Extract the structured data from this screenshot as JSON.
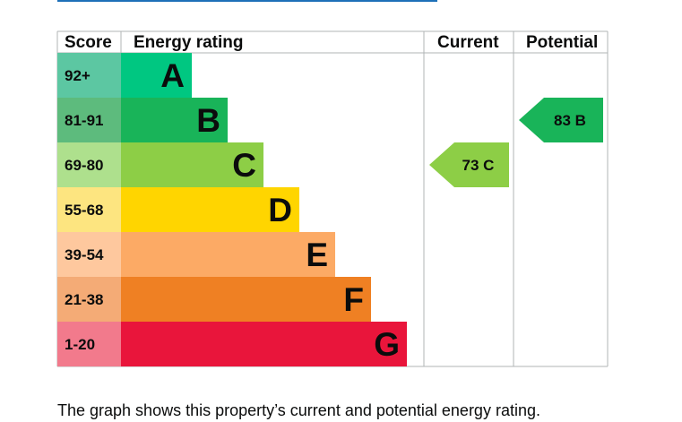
{
  "chart_data": {
    "type": "bar",
    "headers": {
      "score": "Score",
      "energy_rating": "Energy rating",
      "current": "Current",
      "potential": "Potential"
    },
    "bands": [
      {
        "score": "92+",
        "letter": "A",
        "score_color": "#5cc7a2",
        "bar_color": "#00c781",
        "letter_color": "#0b0c0c"
      },
      {
        "score": "81-91",
        "letter": "B",
        "score_color": "#5dbb7d",
        "bar_color": "#19b459",
        "letter_color": "#0b0c0c"
      },
      {
        "score": "69-80",
        "letter": "C",
        "score_color": "#aee08d",
        "bar_color": "#8dce46",
        "letter_color": "#0b0c0c"
      },
      {
        "score": "55-68",
        "letter": "D",
        "score_color": "#fde580",
        "bar_color": "#ffd500",
        "letter_color": "#0b0c0c"
      },
      {
        "score": "39-54",
        "letter": "E",
        "score_color": "#fec89e",
        "bar_color": "#fcaa65",
        "letter_color": "#0b0c0c"
      },
      {
        "score": "21-38",
        "letter": "F",
        "score_color": "#f4ab76",
        "bar_color": "#ef8023",
        "letter_color": "#0b0c0c"
      },
      {
        "score": "1-20",
        "letter": "G",
        "score_color": "#f27a8c",
        "bar_color": "#e9153b",
        "letter_color": "#0b0c0c"
      }
    ],
    "current": {
      "value": 73,
      "band": "C",
      "label": "73  C",
      "color": "#8dce46",
      "text_color": "#0b0c0c"
    },
    "potential": {
      "value": 83,
      "band": "B",
      "label": "83  B",
      "color": "#19b459",
      "text_color": "#0b0c0c"
    }
  },
  "caption": "The graph shows this property’s current and potential energy rating.",
  "colors": {
    "grid": "#b1b4b6",
    "text": "#0b0c0c",
    "link": "#1d70b8"
  }
}
